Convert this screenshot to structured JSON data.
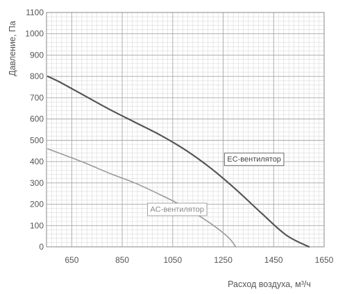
{
  "chart_data": {
    "type": "line",
    "title": "",
    "xlabel": "Расход воздуха, м³/ч",
    "ylabel": "Давление, Па",
    "xlim": [
      550,
      1650
    ],
    "ylim": [
      0,
      1100
    ],
    "x_ticks": [
      650,
      850,
      1050,
      1250,
      1450,
      1650
    ],
    "x_tick_labels": [
      "650",
      "850",
      "1050",
      "1250",
      "1450",
      "1650"
    ],
    "y_ticks": [
      0,
      100,
      200,
      300,
      400,
      500,
      600,
      700,
      800,
      900,
      1000,
      1100
    ],
    "y_tick_labels": [
      "0",
      "100",
      "200",
      "300",
      "400",
      "500",
      "600",
      "700",
      "800",
      "900",
      "1000",
      "1100"
    ],
    "grid": true,
    "series": [
      {
        "name": "EC-вентилятор",
        "color": "#555555",
        "x": [
          555,
          600,
          700,
          800,
          900,
          1000,
          1100,
          1200,
          1300,
          1400,
          1500,
          1590
        ],
        "y": [
          800,
          775,
          710,
          645,
          585,
          525,
          455,
          370,
          270,
          160,
          55,
          0
        ]
      },
      {
        "name": "AC-вентилятор",
        "color": "#999999",
        "x": [
          555,
          600,
          700,
          800,
          900,
          1000,
          1100,
          1200,
          1270,
          1300
        ],
        "y": [
          460,
          440,
          395,
          345,
          300,
          245,
          185,
          110,
          45,
          0
        ]
      }
    ],
    "annotations": [
      {
        "text": "EC-вентилятор",
        "series": 0,
        "x": 1255,
        "y": 440
      },
      {
        "text": "AC-вентилятор",
        "series": 1,
        "x": 950,
        "y": 205
      }
    ]
  }
}
